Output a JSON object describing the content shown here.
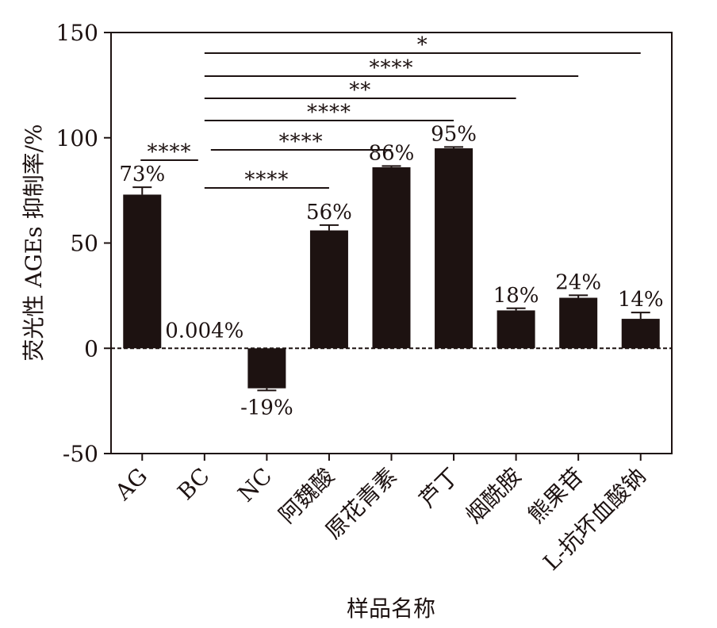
{
  "chart_data": {
    "type": "bar",
    "ylabel": "荧光性 AGEs 抑制率/%",
    "xlabel": "样品名称",
    "ylim": [
      -50,
      150
    ],
    "yticks": [
      "-50",
      "0",
      "50",
      "100",
      "150"
    ],
    "categories": [
      "AG",
      "BC",
      "NC",
      "阿魏酸",
      "原花青素",
      "芦丁",
      "烟酰胺",
      "熊果苷",
      "L-抗坏血酸钠"
    ],
    "values": [
      73,
      0.004,
      -19,
      56,
      86,
      95,
      18,
      24,
      14
    ],
    "errors": [
      3.5,
      0,
      1,
      2.5,
      0.6,
      0.6,
      1,
      1.2,
      3
    ],
    "value_labels": [
      "73%",
      "0.004%",
      "-19%",
      "56%",
      "86%",
      "95%",
      "18%",
      "24%",
      "14%"
    ],
    "significance": [
      {
        "from": 1,
        "to": 8,
        "label": "*"
      },
      {
        "from": 1,
        "to": 7,
        "label": "****"
      },
      {
        "from": 1,
        "to": 6,
        "label": "**"
      },
      {
        "from": 1,
        "to": 5,
        "label": "****"
      },
      {
        "from": 1,
        "to": 4,
        "label": "****"
      },
      {
        "from": 1,
        "to": 0,
        "label": "****"
      },
      {
        "from": 1,
        "to": 3,
        "label": "****"
      }
    ],
    "bar_color": "#1d1211",
    "reference_line": 0
  }
}
